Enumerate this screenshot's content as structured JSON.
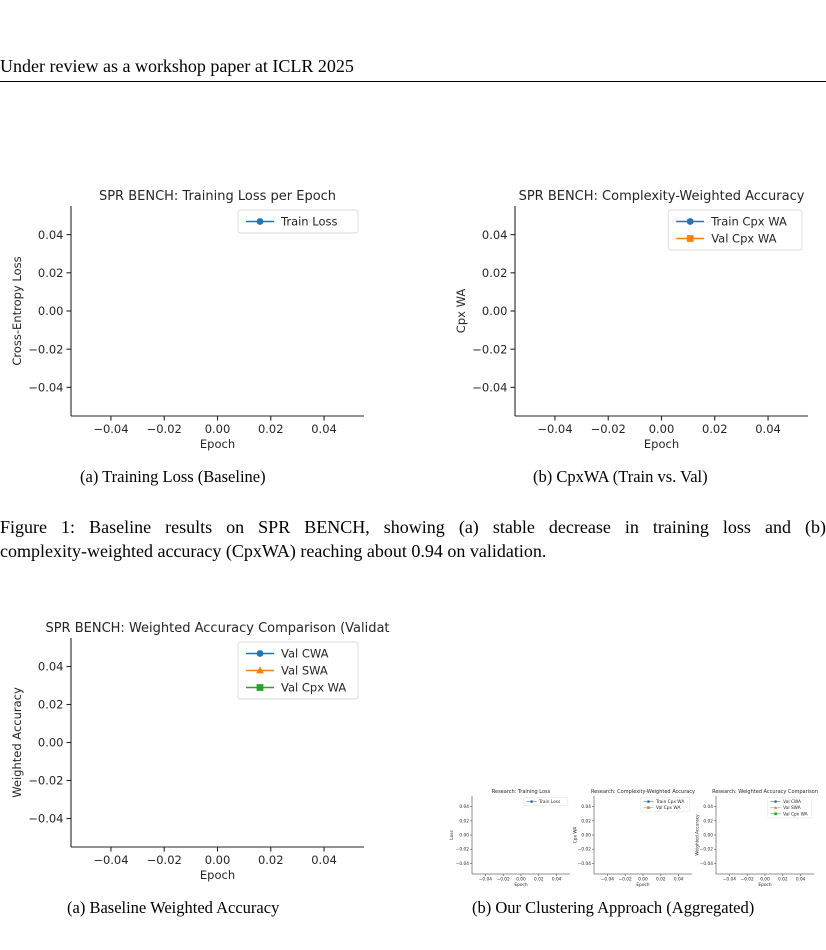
{
  "header": {
    "text": "Under review as a workshop paper at ICLR 2025"
  },
  "figure1": {
    "caption_line1": "Figure 1:  Baseline results on SPR BENCH, showing (a) stable decrease in training loss and (b)",
    "caption_line2": "complexity-weighted accuracy (CpxWA) reaching about 0.94 on validation."
  },
  "subcaptions": {
    "a_top": "(a)  Training Loss (Baseline)",
    "b_top": "(b)  CpxWA (Train vs. Val)",
    "a_bottom": "(a)  Baseline Weighted Accuracy",
    "b_bottom": "(b)  Our Clustering Approach (Aggregated)"
  },
  "chart_data": [
    {
      "id": "loss",
      "type": "line",
      "title": "SPR BENCH: Training Loss per Epoch",
      "xlabel": "Epoch",
      "ylabel": "Cross-Entropy Loss",
      "xticks": [
        "−0.04",
        "−0.02",
        "0.00",
        "0.02",
        "0.04"
      ],
      "yticks": [
        "0.04",
        "0.02",
        "0.00",
        "−0.02",
        "−0.04"
      ],
      "xlim": [
        -0.055,
        0.055
      ],
      "ylim": [
        -0.055,
        0.055
      ],
      "grid": false,
      "legend_position": "top-right",
      "series": [
        {
          "name": "Train Loss",
          "color": "#1f77b4",
          "marker": "circle",
          "values": []
        }
      ]
    },
    {
      "id": "cpxwa",
      "type": "line",
      "title": "SPR BENCH: Complexity-Weighted Accuracy",
      "xlabel": "Epoch",
      "ylabel": "Cpx WA",
      "xticks": [
        "−0.04",
        "−0.02",
        "0.00",
        "0.02",
        "0.04"
      ],
      "yticks": [
        "0.04",
        "0.02",
        "0.00",
        "−0.02",
        "−0.04"
      ],
      "xlim": [
        -0.055,
        0.055
      ],
      "ylim": [
        -0.055,
        0.055
      ],
      "grid": false,
      "legend_position": "top-right",
      "series": [
        {
          "name": "Train Cpx WA",
          "color": "#1f77b4",
          "marker": "circle",
          "values": []
        },
        {
          "name": "Val Cpx WA",
          "color": "#ff7f0e",
          "marker": "square",
          "values": []
        }
      ]
    },
    {
      "id": "wacc",
      "type": "line",
      "title": "SPR BENCH: Weighted Accuracy Comparison (Validat",
      "xlabel": "Epoch",
      "ylabel": "Weighted Accuracy",
      "xticks": [
        "−0.04",
        "−0.02",
        "0.00",
        "0.02",
        "0.04"
      ],
      "yticks": [
        "0.04",
        "0.02",
        "0.00",
        "−0.02",
        "−0.04"
      ],
      "xlim": [
        -0.055,
        0.055
      ],
      "ylim": [
        -0.055,
        0.055
      ],
      "grid": false,
      "legend_position": "top-right",
      "series": [
        {
          "name": "Val CWA",
          "color": "#1f77b4",
          "marker": "circle",
          "values": []
        },
        {
          "name": "Val SWA",
          "color": "#ff7f0e",
          "marker": "triangle",
          "values": []
        },
        {
          "name": "Val Cpx WA",
          "color": "#2ca02c",
          "marker": "square",
          "values": []
        }
      ]
    },
    {
      "id": "agg_loss",
      "type": "line",
      "title": "Research: Training Loss",
      "xlabel": "Epoch",
      "ylabel": "Loss",
      "xticks": [
        "−0.04",
        "−0.02",
        "0.00",
        "0.02",
        "0.04"
      ],
      "yticks": [
        "0.04",
        "0.02",
        "0.00",
        "−0.02",
        "−0.04"
      ],
      "xlim": [
        -0.055,
        0.055
      ],
      "ylim": [
        -0.055,
        0.055
      ],
      "grid": false,
      "legend_position": "top-right",
      "series": [
        {
          "name": "Train Loss",
          "color": "#1f77b4",
          "marker": "circle",
          "values": []
        }
      ]
    },
    {
      "id": "agg_cpx",
      "type": "line",
      "title": "Research: Complexity-Weighted Accuracy",
      "xlabel": "Epoch",
      "ylabel": "Cpx WA",
      "xticks": [
        "−0.04",
        "−0.02",
        "0.00",
        "0.02",
        "0.04"
      ],
      "yticks": [
        "0.04",
        "0.02",
        "0.00",
        "−0.02",
        "−0.04"
      ],
      "xlim": [
        -0.055,
        0.055
      ],
      "ylim": [
        -0.055,
        0.055
      ],
      "grid": false,
      "legend_position": "top-right",
      "series": [
        {
          "name": "Train Cpx WA",
          "color": "#1f77b4",
          "marker": "circle",
          "values": []
        },
        {
          "name": "Val Cpx WA",
          "color": "#ff7f0e",
          "marker": "square",
          "values": []
        }
      ]
    },
    {
      "id": "agg_wacc",
      "type": "line",
      "title": "Research: Weighted Accuracy Comparison",
      "xlabel": "Epoch",
      "ylabel": "Weighted Accuracy",
      "xticks": [
        "−0.04",
        "−0.02",
        "0.00",
        "0.02",
        "0.04"
      ],
      "yticks": [
        "0.04",
        "0.02",
        "0.00",
        "−0.02",
        "−0.04"
      ],
      "xlim": [
        -0.055,
        0.055
      ],
      "ylim": [
        -0.055,
        0.055
      ],
      "grid": false,
      "legend_position": "top-right",
      "series": [
        {
          "name": "Val CWA",
          "color": "#1f77b4",
          "marker": "circle",
          "values": []
        },
        {
          "name": "Val SWA",
          "color": "#ff7f0e",
          "marker": "triangle",
          "values": []
        },
        {
          "name": "Val Cpx WA",
          "color": "#2ca02c",
          "marker": "square",
          "values": []
        }
      ]
    }
  ]
}
